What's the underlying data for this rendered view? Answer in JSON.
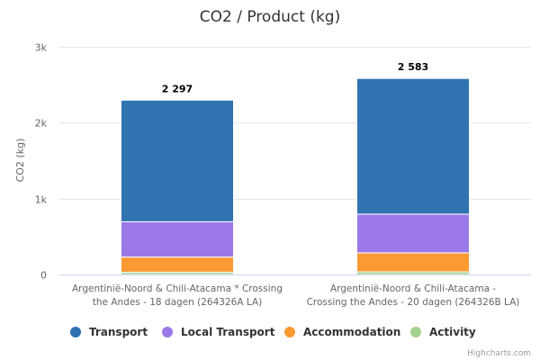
{
  "chart_data": {
    "type": "bar",
    "stacked": true,
    "title": "CO2 / Product (kg)",
    "xlabel": "",
    "ylabel": "CO2 (kg)",
    "ylim": [
      0,
      3000
    ],
    "yticks": [
      0,
      1000,
      2000,
      3000
    ],
    "ytick_labels": [
      "0",
      "1k",
      "2k",
      "3k"
    ],
    "grid": true,
    "legend_position": "bottom",
    "categories": [
      [
        "Argentinië-Noord & Chili-Atacama * Crossing",
        "the Andes - 18 dagen (264326A LA)"
      ],
      [
        "Argentinië-Noord & Chili-Atacama -",
        "Crossing the Andes - 20 dagen (264326B LA)"
      ]
    ],
    "totals": [
      2297,
      2583
    ],
    "total_labels": [
      "2 297",
      "2 583"
    ],
    "series": [
      {
        "name": "Transport",
        "color": "#2f73b0",
        "values": [
          1602,
          1788
        ]
      },
      {
        "name": "Local Transport",
        "color": "#9b79e8",
        "values": [
          465,
          510
        ]
      },
      {
        "name": "Accommodation",
        "color": "#fb9a33",
        "values": [
          200,
          250
        ]
      },
      {
        "name": "Activity",
        "color": "#a3d18f",
        "values": [
          30,
          35
        ]
      }
    ],
    "credits": "Highcharts.com"
  }
}
